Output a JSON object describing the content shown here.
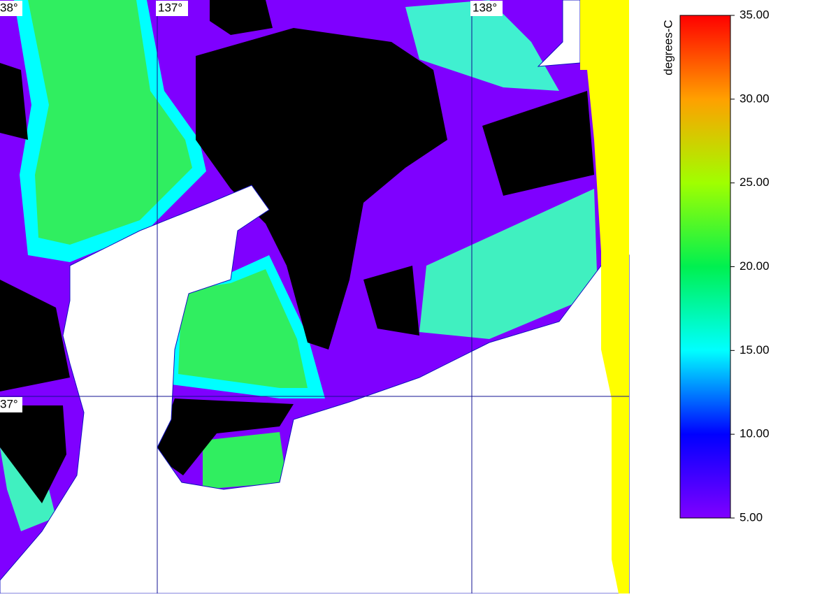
{
  "graticule": {
    "lon_labels": [
      "38°",
      "137°",
      "138°"
    ],
    "lat_labels": [
      "37°"
    ]
  },
  "colorbar": {
    "label": "degrees-C",
    "lim": [
      5,
      35
    ],
    "ticks": [
      {
        "value": 5,
        "label": "5.00"
      },
      {
        "value": 10,
        "label": "10.00"
      },
      {
        "value": 15,
        "label": "15.00"
      },
      {
        "value": 20,
        "label": "20.00"
      },
      {
        "value": 25,
        "label": "25.00"
      },
      {
        "value": 30,
        "label": "30.00"
      },
      {
        "value": 35,
        "label": "35.00"
      }
    ],
    "colors": [
      "#8000ff",
      "#0000ff",
      "#00ffff",
      "#00f050",
      "#a0ff00",
      "#ffa000",
      "#ff0000"
    ]
  }
}
